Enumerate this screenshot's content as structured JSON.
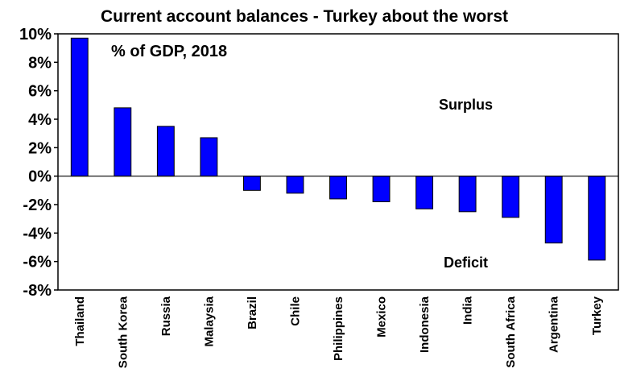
{
  "chart_data": {
    "type": "bar",
    "title": "Current account balances - Turkey about the worst",
    "subtitle": "% of GDP, 2018",
    "annotations": [
      "Surplus",
      "Deficit"
    ],
    "categories": [
      "Thailand",
      "South Korea",
      "Russia",
      "Malaysia",
      "Brazil",
      "Chile",
      "Philippines",
      "Mexico",
      "Indonesia",
      "India",
      "South Africa",
      "Argentina",
      "Turkey"
    ],
    "values": [
      9.7,
      4.8,
      3.5,
      2.7,
      -1.0,
      -1.2,
      -1.6,
      -1.8,
      -2.3,
      -2.5,
      -2.9,
      -4.7,
      -5.9
    ],
    "yticks": [
      "-8%",
      "-6%",
      "-4%",
      "-2%",
      "0%",
      "2%",
      "4%",
      "6%",
      "8%",
      "10%"
    ],
    "ylim": [
      -8,
      10
    ],
    "ylabel": "",
    "xlabel": "",
    "grid": false,
    "bar_color": "#0000ff",
    "axis_color": "#000000"
  }
}
